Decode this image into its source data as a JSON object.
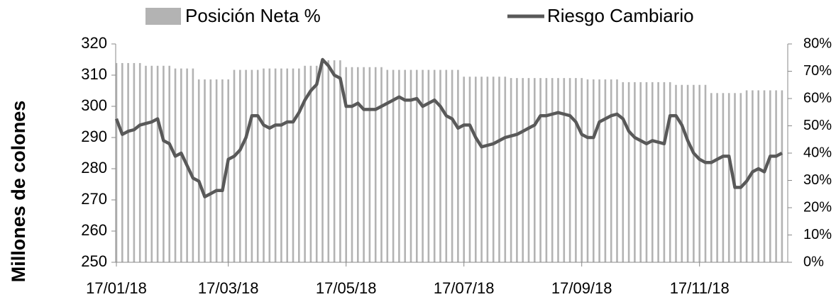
{
  "chart_data": {
    "type": "bar_line",
    "y_label": "Millones de colones",
    "legend": "top",
    "categories": [
      "17/01/18",
      null,
      null,
      null,
      null,
      null,
      null,
      null,
      null,
      null,
      null,
      null,
      null,
      null,
      null,
      null,
      null,
      null,
      null,
      "17/03/18",
      null,
      null,
      null,
      null,
      null,
      null,
      null,
      null,
      null,
      null,
      null,
      null,
      null,
      null,
      null,
      null,
      null,
      null,
      null,
      "17/05/18",
      null,
      null,
      null,
      null,
      null,
      null,
      null,
      null,
      null,
      null,
      null,
      null,
      null,
      null,
      null,
      null,
      null,
      null,
      null,
      "17/07/18",
      null,
      null,
      null,
      null,
      null,
      null,
      null,
      null,
      null,
      null,
      null,
      null,
      null,
      null,
      null,
      null,
      null,
      null,
      null,
      "17/09/18",
      null,
      null,
      null,
      null,
      null,
      null,
      null,
      null,
      null,
      null,
      null,
      null,
      null,
      null,
      null,
      null,
      null,
      null,
      null,
      "17/11/18",
      null,
      null,
      null,
      null,
      null,
      null,
      null,
      null,
      null,
      null,
      null,
      null,
      null,
      null
    ],
    "series": [
      {
        "name": "Posición Neta %",
        "kind": "bar",
        "axis": "y2",
        "color": "#b3b3b3",
        "values": [
          73,
          73,
          73,
          73,
          73,
          72,
          72,
          72,
          72,
          72,
          71,
          71,
          71,
          71,
          67,
          67,
          67,
          67,
          67,
          67,
          70.5,
          70.5,
          70.5,
          70.5,
          70.5,
          71,
          71,
          71,
          71,
          71,
          71,
          71,
          72,
          72,
          72,
          74,
          74,
          74,
          74,
          71.5,
          71.5,
          71.5,
          71.5,
          71.5,
          71.5,
          71.5,
          70.5,
          70.5,
          70.5,
          70.5,
          70.5,
          70.5,
          70.5,
          70.5,
          70.5,
          70.5,
          70.5,
          70.5,
          70.5,
          68,
          68,
          68,
          68,
          68,
          68,
          68,
          68,
          67.5,
          67.5,
          67.5,
          67.5,
          67.5,
          67.5,
          67.5,
          67.5,
          67.5,
          67.5,
          67.5,
          67.5,
          67.5,
          67,
          67,
          67,
          67,
          67,
          67,
          66,
          66,
          66,
          66,
          66,
          66,
          66,
          66,
          66,
          65,
          65,
          65,
          65,
          65,
          65,
          62,
          62,
          62,
          62,
          62,
          62,
          63,
          63,
          63,
          63,
          63,
          63,
          63
        ]
      },
      {
        "name": "Riesgo Cambiario",
        "kind": "line",
        "color": "#595959",
        "values": [
          296,
          291,
          292,
          292.5,
          294,
          294.5,
          295,
          296,
          289,
          288,
          284,
          285,
          281,
          277,
          276,
          271,
          272,
          273,
          273,
          283,
          284,
          286,
          290,
          297,
          297,
          294,
          293,
          294,
          294,
          295,
          295,
          298,
          302,
          305,
          307,
          315,
          313,
          310,
          309,
          300,
          300,
          301,
          299,
          299,
          299,
          300,
          301,
          302,
          303,
          302,
          302,
          302.5,
          300,
          301,
          302,
          300,
          297,
          296,
          293,
          294,
          294,
          290,
          287,
          287.5,
          288,
          289,
          290,
          290.5,
          291,
          292,
          293,
          294,
          297,
          297,
          297.5,
          298,
          297.5,
          297,
          295,
          291,
          290,
          290,
          295,
          296,
          297,
          297.5,
          296,
          292,
          290,
          289,
          288,
          289,
          288.5,
          288,
          297,
          297,
          294,
          289,
          285,
          283,
          282,
          282,
          283,
          284,
          284,
          274,
          274,
          276,
          279,
          280,
          279,
          284,
          284,
          285
        ]
      }
    ],
    "ylim": [
      250,
      320
    ],
    "yticks": [
      250,
      260,
      270,
      280,
      290,
      300,
      310,
      320
    ],
    "y2lim": [
      0,
      80
    ],
    "y2ticks": [
      {
        "value": 0,
        "label": "0%"
      },
      {
        "value": 10,
        "label": "10%"
      },
      {
        "value": 20,
        "label": "20%"
      },
      {
        "value": 30,
        "label": "30%"
      },
      {
        "value": 40,
        "label": "40%"
      },
      {
        "value": 50,
        "label": "50%"
      },
      {
        "value": 60,
        "label": "60%"
      },
      {
        "value": 70,
        "label": "70%"
      },
      {
        "value": 80,
        "label": "80%"
      }
    ]
  }
}
